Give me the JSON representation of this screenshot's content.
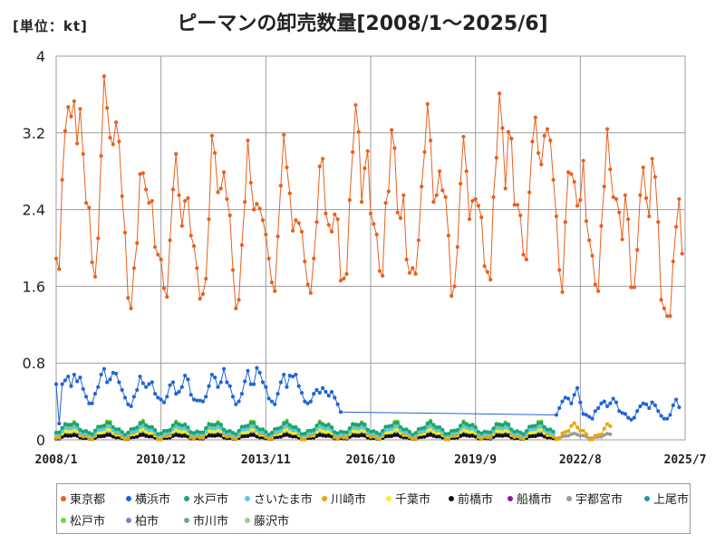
{
  "chart_data": {
    "type": "line",
    "title": "ピーマンの卸売数量[2008/1～2025/6]",
    "unit_label": "[単位：kt]",
    "xlabel": "",
    "ylabel": "",
    "ylim": [
      0,
      4
    ],
    "yticks": [
      "0",
      "0.8",
      "1.6",
      "2.4",
      "3.2",
      "4"
    ],
    "yticks_values": [
      0,
      0.8,
      1.6,
      2.4,
      3.2,
      4
    ],
    "xticks": [
      "2008/1",
      "2010/12",
      "2013/11",
      "2016/10",
      "2019/9",
      "2022/8",
      "2025/7"
    ],
    "x_start": "2008/1",
    "x_end": "2025/7",
    "grid": true,
    "legend_position": "bottom",
    "series": [
      {
        "name": "東京都",
        "color": "#e8601c",
        "start": "2008/1",
        "values": [
          1.89,
          1.78,
          2.71,
          3.22,
          3.47,
          3.37,
          3.53,
          3.09,
          3.45,
          2.98,
          2.47,
          2.42,
          1.85,
          1.7,
          2.1,
          2.96,
          3.79,
          3.46,
          3.15,
          3.08,
          3.31,
          3.11,
          2.54,
          2.16,
          1.48,
          1.37,
          1.79,
          2.05,
          2.77,
          2.78,
          2.61,
          2.47,
          2.49,
          2.01,
          1.93,
          1.88,
          1.58,
          1.49,
          2.08,
          2.61,
          2.98,
          2.55,
          2.23,
          2.49,
          2.52,
          2.13,
          2.02,
          1.79,
          1.47,
          1.52,
          1.68,
          2.3,
          3.17,
          2.99,
          2.58,
          2.62,
          2.79,
          2.51,
          2.34,
          1.77,
          1.37,
          1.46,
          2.03,
          2.48,
          3.12,
          2.68,
          2.4,
          2.46,
          2.41,
          2.29,
          2.14,
          1.89,
          1.64,
          1.55,
          2.12,
          2.65,
          3.18,
          2.84,
          2.57,
          2.18,
          2.29,
          2.26,
          2.17,
          1.86,
          1.62,
          1.53,
          1.89,
          2.27,
          2.85,
          2.93,
          2.36,
          2.24,
          2.17,
          2.35,
          2.3,
          1.66,
          1.68,
          1.73,
          2.5,
          3.0,
          3.49,
          3.21,
          2.48,
          2.83,
          3.01,
          2.36,
          2.25,
          2.14,
          1.76,
          1.71,
          2.47,
          2.59,
          3.23,
          3.04,
          2.37,
          2.31,
          2.55,
          1.88,
          1.74,
          1.79,
          1.73,
          2.08,
          2.64,
          3.0,
          3.5,
          3.12,
          2.48,
          2.55,
          2.8,
          2.6,
          2.53,
          2.13,
          1.5,
          1.6,
          2.01,
          2.67,
          3.16,
          2.8,
          2.3,
          2.49,
          2.51,
          2.44,
          2.32,
          1.81,
          1.75,
          1.67,
          2.53,
          2.94,
          3.61,
          3.25,
          2.62,
          3.21,
          3.14,
          2.45,
          2.45,
          2.34,
          1.93,
          1.88,
          2.58,
          3.11,
          3.36,
          2.99,
          2.87,
          3.17,
          3.24,
          3.12,
          2.71,
          2.33,
          1.77,
          1.54,
          2.27,
          2.79,
          2.77,
          2.69,
          2.44,
          2.5,
          2.91,
          2.28,
          2.08,
          1.92,
          1.62,
          1.55,
          2.23,
          2.64,
          3.24,
          2.82,
          2.53,
          2.51,
          2.37,
          2.09,
          2.55,
          2.3,
          1.59,
          1.59,
          1.98,
          2.55,
          2.84,
          2.52,
          2.33,
          2.93,
          2.74,
          2.27,
          1.46,
          1.37,
          1.29,
          1.29,
          1.86,
          2.22,
          2.51,
          1.94
        ]
      },
      {
        "name": "横浜市",
        "color": "#1f64d6",
        "start": "2008/1",
        "values": [
          0.58,
          0.17,
          0.58,
          0.62,
          0.66,
          0.56,
          0.68,
          0.61,
          0.65,
          0.53,
          0.45,
          0.38,
          0.38,
          0.48,
          0.55,
          0.68,
          0.74,
          0.6,
          0.63,
          0.7,
          0.69,
          0.6,
          0.52,
          0.44,
          0.37,
          0.35,
          0.45,
          0.52,
          0.66,
          0.59,
          0.55,
          0.58,
          0.6,
          0.48,
          0.44,
          0.42,
          0.39,
          0.45,
          0.57,
          0.6,
          0.48,
          0.5,
          0.55,
          0.67,
          0.63,
          0.47,
          0.42,
          0.41,
          0.41,
          0.4,
          0.45,
          0.56,
          0.68,
          0.65,
          0.55,
          0.6,
          0.74,
          0.6,
          0.56,
          0.45,
          0.37,
          0.4,
          0.48,
          0.61,
          0.72,
          0.58,
          0.58,
          0.75,
          0.7,
          0.6,
          0.55,
          0.43,
          0.4,
          0.37,
          0.48,
          0.6,
          0.68,
          0.55,
          0.67,
          0.66,
          0.68,
          0.56,
          0.49,
          0.4,
          0.38,
          0.4,
          0.48,
          0.52,
          0.49,
          0.54,
          0.5,
          0.46,
          0.5,
          0.44,
          0.37,
          0.29
        ],
        "gap_to": "2021/12",
        "values_after_gap": [
          0.26,
          0.33,
          0.4,
          0.44,
          0.43,
          0.38,
          0.47,
          0.54,
          0.39,
          0.27,
          0.26,
          0.24,
          0.22,
          0.3,
          0.33,
          0.38,
          0.4,
          0.35,
          0.38,
          0.43,
          0.39,
          0.3,
          0.28,
          0.27,
          0.23,
          0.21,
          0.23,
          0.3,
          0.35,
          0.38,
          0.37,
          0.33,
          0.39,
          0.36,
          0.3,
          0.25,
          0.22,
          0.22,
          0.26,
          0.36,
          0.42,
          0.34
        ]
      },
      {
        "name": "水戸市",
        "color": "#1aa66e",
        "base": 0.12,
        "amp": 0.05,
        "start": "2008/1",
        "end": "2021/11"
      },
      {
        "name": "さいたま市",
        "color": "#5bc7ee",
        "base": 0.09,
        "amp": 0.04,
        "start": "2008/1",
        "end": "2021/11"
      },
      {
        "name": "川崎市",
        "color": "#e6a700",
        "base": 0.08,
        "amp": 0.07,
        "start": "2008/1",
        "end": "2023/6"
      },
      {
        "name": "千葉市",
        "color": "#f5ef1c",
        "base": 0.06,
        "amp": 0.04,
        "start": "2008/1",
        "end": "2021/11"
      },
      {
        "name": "前橋市",
        "color": "#111111",
        "base": 0.03,
        "amp": 0.02,
        "start": "2008/1",
        "end": "2021/11"
      },
      {
        "name": "船橋市",
        "color": "#8a1a9c",
        "base": 0.03,
        "amp": 0.015,
        "start": "2008/1",
        "end": "2021/11"
      },
      {
        "name": "宇都宮市",
        "color": "#9a9a9a",
        "base": 0.04,
        "amp": 0.02,
        "start": "2008/1",
        "end": "2023/6"
      },
      {
        "name": "上尾市",
        "color": "#1a9c8c",
        "base": 0.1,
        "amp": 0.05,
        "start": "2008/1",
        "end": "2021/11"
      },
      {
        "name": "松戸市",
        "color": "#7ad33a",
        "base": 0.11,
        "amp": 0.07,
        "start": "2008/1",
        "end": "2021/11"
      },
      {
        "name": "柏市",
        "color": "#7d7fd0",
        "base": 0.03,
        "amp": 0.02,
        "start": "2008/1",
        "end": "2021/11"
      },
      {
        "name": "市川市",
        "color": "#6fa8a0",
        "base": 0.04,
        "amp": 0.02,
        "start": "2008/1",
        "end": "2021/11"
      },
      {
        "name": "藤沢市",
        "color": "#9ccf8a",
        "base": 0.05,
        "amp": 0.03,
        "start": "2008/1",
        "end": "2021/11"
      }
    ]
  }
}
